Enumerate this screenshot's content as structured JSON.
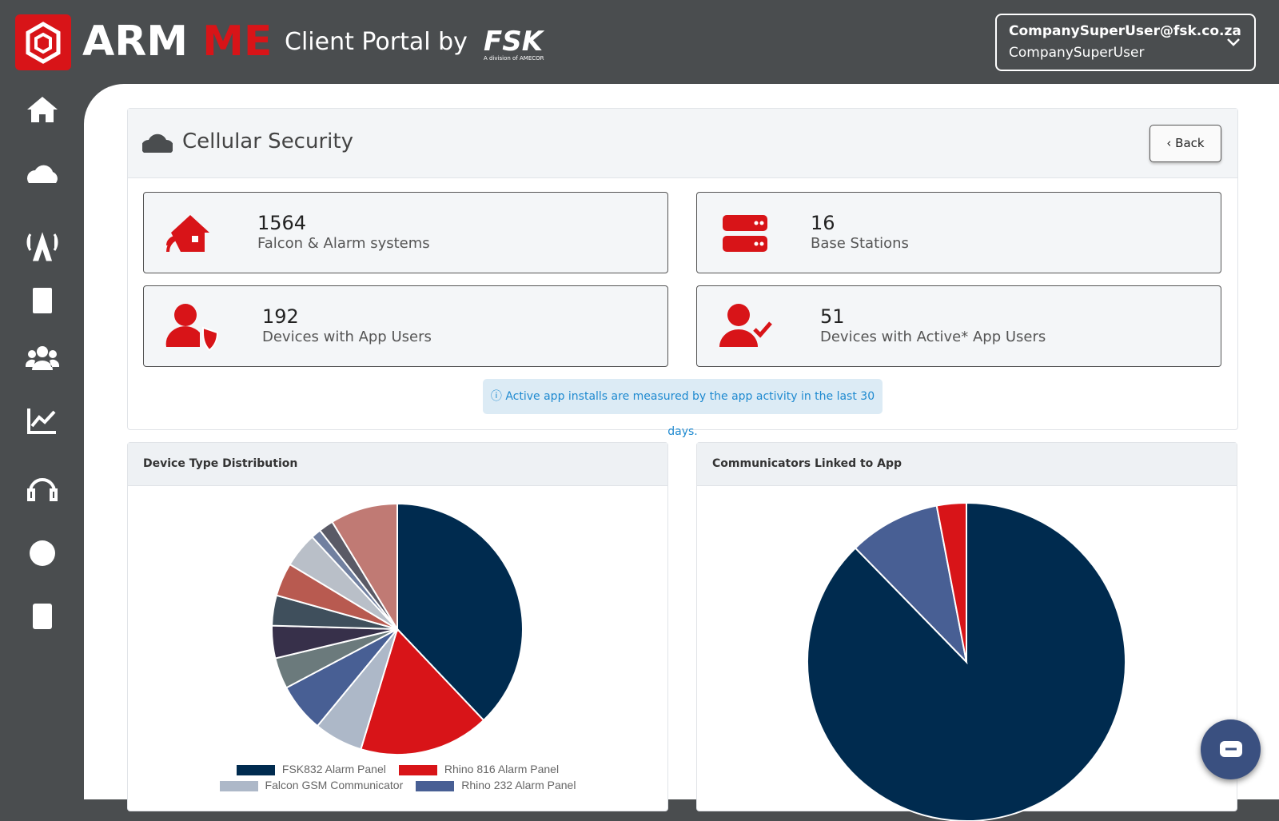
{
  "header": {
    "logo_a": "ARM",
    "logo_b": "ME",
    "portal": "Client Portal by",
    "brand": "FSK",
    "brand_sub": "A division of AMECOR",
    "user_email": "CompanySuperUser@fsk.co.za",
    "user_name": "CompanySuperUser"
  },
  "page": {
    "title": "Cellular Security",
    "back": "Back"
  },
  "stats": [
    {
      "value": 1564,
      "label": "Falcon & Alarm systems"
    },
    {
      "value": 16,
      "label": "Base Stations"
    },
    {
      "value": 192,
      "label": "Devices with App Users"
    },
    {
      "value": 51,
      "label": "Devices with Active* App Users"
    }
  ],
  "info": "Active app installs are measured by the app activity in the last 30 days.",
  "chart_data": [
    {
      "type": "pie",
      "title": "Device Type Distribution",
      "categories": [
        "FSK832 Alarm Panel",
        "Rhino 816 Alarm Panel",
        "Falcon GSM Communicator",
        "Rhino 232 Alarm Panel",
        null,
        null,
        null,
        null,
        null,
        null,
        null,
        null
      ],
      "values": [
        38,
        16.8,
        6.3,
        6.3,
        4,
        4.2,
        3.9,
        4.3,
        4.5,
        1.3,
        1.9,
        8.7
      ],
      "colors": [
        "#002b4f",
        "#d81418",
        "#adb8c8",
        "#485f94",
        "#6b7a7c",
        "#37304a",
        "#3f4f5c",
        "#b85a50",
        "#b9bfc8",
        "#7180a0",
        "#5a5a66",
        "#c07a74"
      ]
    },
    {
      "type": "pie",
      "title": "Communicators Linked to App",
      "categories": [
        null,
        null,
        null
      ],
      "values": [
        87.7,
        9.3,
        3.0
      ],
      "colors": [
        "#002b4f",
        "#485f94",
        "#d81418"
      ]
    }
  ]
}
